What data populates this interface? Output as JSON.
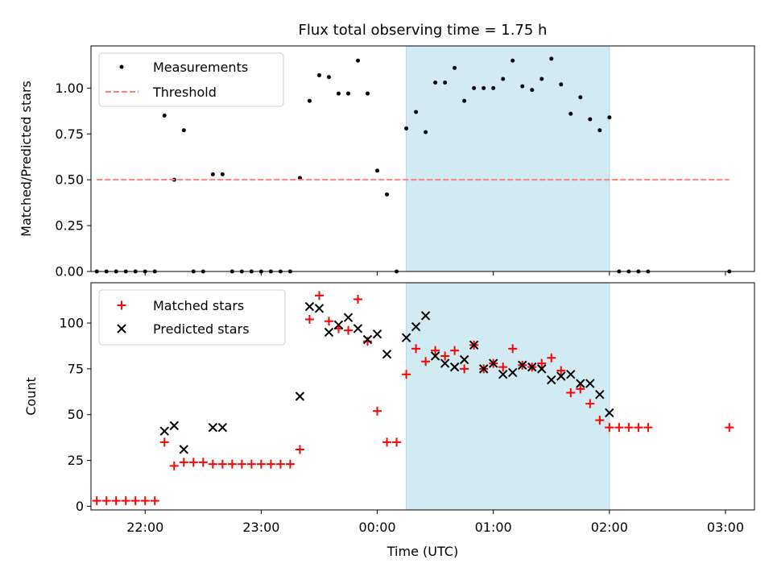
{
  "title": "Flux total observing time = 1.75 h",
  "chart_data": [
    {
      "type": "scatter",
      "ylabel": "Matched/Predicted stars",
      "xlabel": "",
      "xlim": [
        "21:32",
        "03:15"
      ],
      "ylim": [
        0,
        1.23
      ],
      "yticks": [
        0.0,
        0.25,
        0.5,
        0.75,
        1.0
      ],
      "ytick_labels": [
        "0.00",
        "0.25",
        "0.50",
        "0.75",
        "1.00"
      ],
      "shaded_interval": {
        "start": "00:15",
        "end": "02:00",
        "color": "#add8e6"
      },
      "legend": {
        "position": "top-left",
        "entries": [
          "Measurements",
          "Threshold"
        ]
      },
      "series": [
        {
          "name": "Measurements",
          "marker": "dot",
          "color": "#000000",
          "x": [
            "21:35",
            "21:40",
            "21:45",
            "21:50",
            "21:55",
            "22:00",
            "22:05",
            "22:10",
            "22:15",
            "22:20",
            "22:25",
            "22:30",
            "22:35",
            "22:40",
            "22:45",
            "22:50",
            "22:55",
            "23:00",
            "23:05",
            "23:10",
            "23:15",
            "23:20",
            "23:25",
            "23:30",
            "23:35",
            "23:40",
            "23:45",
            "23:50",
            "23:55",
            "00:00",
            "00:05",
            "00:10",
            "00:15",
            "00:20",
            "00:25",
            "00:30",
            "00:35",
            "00:40",
            "00:45",
            "00:50",
            "00:55",
            "01:00",
            "01:05",
            "01:10",
            "01:15",
            "01:20",
            "01:25",
            "01:30",
            "01:35",
            "01:40",
            "01:45",
            "01:50",
            "01:55",
            "02:00",
            "02:05",
            "02:10",
            "02:15",
            "02:20",
            "03:02"
          ],
          "y": [
            0,
            0,
            0,
            0,
            0,
            0,
            0,
            0.85,
            0.5,
            0.77,
            0,
            0,
            0.53,
            0.53,
            0,
            0,
            0,
            0,
            0,
            0,
            0,
            0.51,
            0.93,
            1.07,
            1.06,
            0.97,
            0.97,
            1.15,
            0.97,
            0.55,
            0.42,
            0,
            0.78,
            0.87,
            0.76,
            1.03,
            1.03,
            1.11,
            0.93,
            1.0,
            1.0,
            1.0,
            1.05,
            1.15,
            1.01,
            0.99,
            1.05,
            1.16,
            1.02,
            0.86,
            0.95,
            0.83,
            0.77,
            0.84,
            0,
            0,
            0,
            0,
            0
          ]
        },
        {
          "name": "Threshold",
          "style": "dashed",
          "color": "#ff7f7f",
          "x": [
            "21:35",
            "03:02"
          ],
          "y": [
            0.5,
            0.5
          ]
        }
      ]
    },
    {
      "type": "scatter",
      "ylabel": "Count",
      "xlabel": "Time (UTC)",
      "xlim": [
        "21:32",
        "03:15"
      ],
      "ylim": [
        -2,
        122
      ],
      "yticks": [
        0,
        25,
        50,
        75,
        100
      ],
      "ytick_labels": [
        "0",
        "25",
        "50",
        "75",
        "100"
      ],
      "xticks": [
        "22:00",
        "23:00",
        "00:00",
        "01:00",
        "02:00",
        "03:00"
      ],
      "shaded_interval": {
        "start": "00:15",
        "end": "02:00",
        "color": "#add8e6"
      },
      "legend": {
        "position": "top-left",
        "entries": [
          "Matched stars",
          "Predicted stars"
        ]
      },
      "series": [
        {
          "name": "Matched stars",
          "marker": "plus",
          "color": "#ff0000",
          "x": [
            "21:35",
            "21:40",
            "21:45",
            "21:50",
            "21:55",
            "22:00",
            "22:05",
            "22:10",
            "22:15",
            "22:20",
            "22:25",
            "22:30",
            "22:35",
            "22:40",
            "22:45",
            "22:50",
            "22:55",
            "23:00",
            "23:05",
            "23:10",
            "23:15",
            "23:20",
            "23:25",
            "23:30",
            "23:35",
            "23:40",
            "23:45",
            "23:50",
            "23:55",
            "00:00",
            "00:05",
            "00:10",
            "00:15",
            "00:20",
            "00:25",
            "00:30",
            "00:35",
            "00:40",
            "00:45",
            "00:50",
            "00:55",
            "01:00",
            "01:05",
            "01:10",
            "01:15",
            "01:20",
            "01:25",
            "01:30",
            "01:35",
            "01:40",
            "01:45",
            "01:50",
            "01:55",
            "02:00",
            "02:05",
            "02:10",
            "02:15",
            "02:20",
            "03:02"
          ],
          "y": [
            3,
            3,
            3,
            3,
            3,
            3,
            3,
            35,
            22,
            24,
            24,
            24,
            23,
            23,
            23,
            23,
            23,
            23,
            23,
            23,
            23,
            31,
            102,
            115,
            101,
            97,
            96,
            113,
            90,
            52,
            35,
            35,
            72,
            86,
            79,
            85,
            82,
            85,
            75,
            88,
            75,
            78,
            76,
            86,
            77,
            76,
            78,
            81,
            74,
            62,
            64,
            56,
            47,
            43,
            43,
            43,
            43,
            43,
            43
          ]
        },
        {
          "name": "Predicted stars",
          "marker": "x",
          "color": "#000000",
          "x": [
            "22:10",
            "22:15",
            "22:20",
            "22:35",
            "22:40",
            "23:20",
            "23:25",
            "23:30",
            "23:35",
            "23:40",
            "23:45",
            "23:50",
            "23:55",
            "00:00",
            "00:05",
            "00:15",
            "00:20",
            "00:25",
            "00:30",
            "00:35",
            "00:40",
            "00:45",
            "00:50",
            "00:55",
            "01:00",
            "01:05",
            "01:10",
            "01:15",
            "01:20",
            "01:25",
            "01:30",
            "01:35",
            "01:40",
            "01:45",
            "01:50",
            "01:55",
            "02:00",
            "02:05"
          ],
          "y": [
            41,
            44,
            31,
            43,
            43,
            60,
            109,
            108,
            95,
            99,
            103,
            97,
            91,
            94,
            83,
            92,
            98,
            104,
            82,
            78,
            76,
            80,
            88,
            75,
            78,
            72,
            73,
            77,
            76,
            75,
            69,
            71,
            72,
            67,
            67,
            61,
            51,
            null
          ]
        }
      ]
    }
  ]
}
